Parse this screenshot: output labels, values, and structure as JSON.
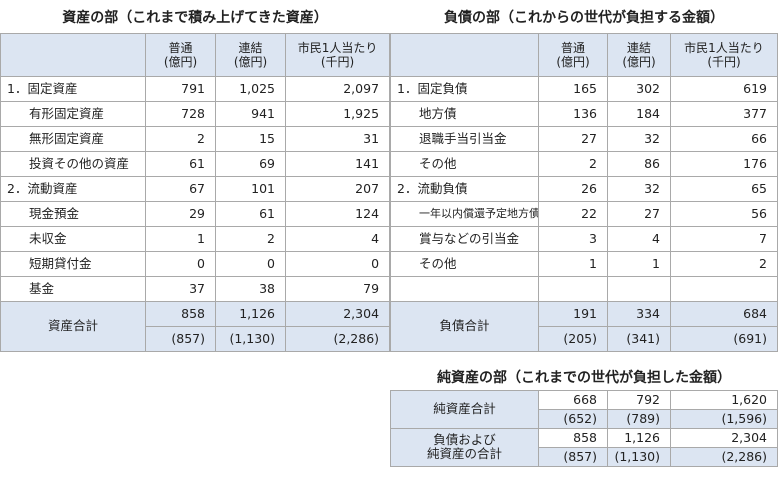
{
  "assets": {
    "title": "資産の部（これまで積み上げてきた資産）",
    "headers": [
      {
        "line1": "普通",
        "line2": "(億円)"
      },
      {
        "line1": "連結",
        "line2": "(億円)"
      },
      {
        "line1": "市民1人当たり",
        "line2": "(千円)"
      }
    ],
    "rows": [
      {
        "label": "1．固定資産",
        "level": 1,
        "v": [
          "791",
          "1,025",
          "2,097"
        ]
      },
      {
        "label": "有形固定資産",
        "level": 2,
        "v": [
          "728",
          "941",
          "1,925"
        ]
      },
      {
        "label": "無形固定資産",
        "level": 2,
        "v": [
          "2",
          "15",
          "31"
        ]
      },
      {
        "label": "投資その他の資産",
        "level": 2,
        "v": [
          "61",
          "69",
          "141"
        ]
      },
      {
        "label": "2．流動資産",
        "level": 1,
        "v": [
          "67",
          "101",
          "207"
        ]
      },
      {
        "label": "現金預金",
        "level": 2,
        "v": [
          "29",
          "61",
          "124"
        ]
      },
      {
        "label": "未収金",
        "level": 2,
        "v": [
          "1",
          "2",
          "4"
        ]
      },
      {
        "label": "短期貸付金",
        "level": 2,
        "v": [
          "0",
          "0",
          "0"
        ]
      },
      {
        "label": "基金",
        "level": 2,
        "v": [
          "37",
          "38",
          "79"
        ]
      }
    ],
    "total": {
      "label": "資産合計",
      "v": [
        "858",
        "1,126",
        "2,304"
      ],
      "prev": [
        "(857)",
        "(1,130)",
        "(2,286)"
      ]
    }
  },
  "liabilities": {
    "title": "負債の部（これからの世代が負担する金額）",
    "headers": [
      {
        "line1": "普通",
        "line2": "(億円)"
      },
      {
        "line1": "連結",
        "line2": "(億円)"
      },
      {
        "line1": "市民1人当たり",
        "line2": "(千円)"
      }
    ],
    "rows": [
      {
        "label": "1．固定負債",
        "level": 1,
        "v": [
          "165",
          "302",
          "619"
        ]
      },
      {
        "label": "地方債",
        "level": 2,
        "v": [
          "136",
          "184",
          "377"
        ]
      },
      {
        "label": "退職手当引当金",
        "level": 2,
        "v": [
          "27",
          "32",
          "66"
        ]
      },
      {
        "label": "その他",
        "level": 2,
        "v": [
          "2",
          "86",
          "176"
        ]
      },
      {
        "label": "2．流動負債",
        "level": 1,
        "v": [
          "26",
          "32",
          "65"
        ]
      },
      {
        "label": "一年以内償還予定地方債",
        "level": 3,
        "v": [
          "22",
          "27",
          "56"
        ]
      },
      {
        "label": "賞与などの引当金",
        "level": 2,
        "v": [
          "3",
          "4",
          "7"
        ]
      },
      {
        "label": "その他",
        "level": 2,
        "v": [
          "1",
          "1",
          "2"
        ]
      }
    ],
    "total": {
      "label": "負債合計",
      "v": [
        "191",
        "334",
        "684"
      ],
      "prev": [
        "(205)",
        "(341)",
        "(691)"
      ]
    }
  },
  "net_assets": {
    "title": "純資産の部（これまでの世代が負担した金額）",
    "rows": [
      {
        "label": "純資産合計",
        "v": [
          "668",
          "792",
          "1,620"
        ],
        "prev": [
          "(652)",
          "(789)",
          "(1,596)"
        ]
      },
      {
        "label_line1": "負債および",
        "label_line2": "純資産の合計",
        "v": [
          "858",
          "1,126",
          "2,304"
        ],
        "prev": [
          "(857)",
          "(1,130)",
          "(2,286)"
        ]
      }
    ]
  }
}
